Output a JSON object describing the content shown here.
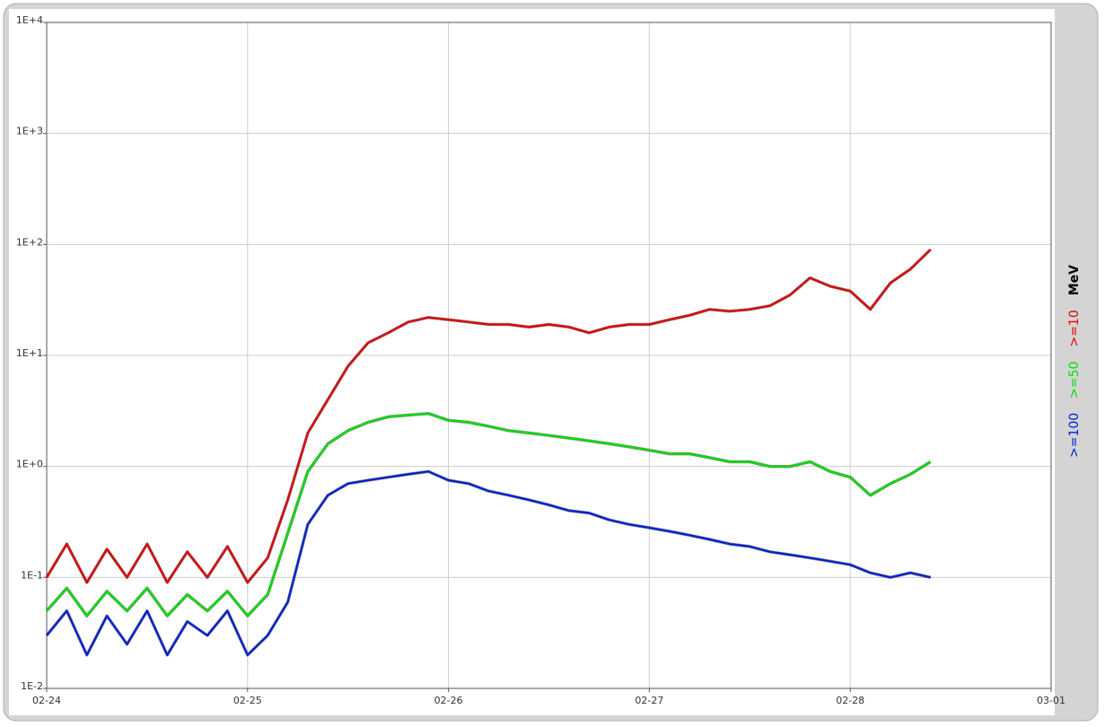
{
  "chart_data": {
    "type": "line",
    "unit_label": "MeV",
    "x": [
      0,
      0.1,
      0.2,
      0.3,
      0.4,
      0.5,
      0.6,
      0.7,
      0.8,
      0.9,
      1.0,
      1.1,
      1.2,
      1.3,
      1.4,
      1.5,
      1.6,
      1.7,
      1.8,
      1.9,
      2.0,
      2.1,
      2.2,
      2.3,
      2.4,
      2.5,
      2.6,
      2.7,
      2.8,
      2.9,
      3.0,
      3.1,
      3.2,
      3.3,
      3.4,
      3.5,
      3.6,
      3.7,
      3.8,
      3.9,
      4.0,
      4.1,
      4.2,
      4.3,
      4.4
    ],
    "series": [
      {
        "name": ">=10",
        "color": "#e00000",
        "values": [
          0.1,
          0.2,
          0.09,
          0.18,
          0.1,
          0.2,
          0.09,
          0.17,
          0.1,
          0.19,
          0.09,
          0.15,
          0.5,
          2,
          4,
          8,
          13,
          16,
          20,
          22,
          21,
          20,
          19,
          19,
          18,
          19,
          18,
          16,
          18,
          19,
          19,
          21,
          23,
          26,
          25,
          26,
          28,
          35,
          50,
          42,
          38,
          26,
          45,
          60,
          90
        ]
      },
      {
        "name": ">=50",
        "color": "#00e000",
        "values": [
          0.05,
          0.08,
          0.045,
          0.075,
          0.05,
          0.08,
          0.045,
          0.07,
          0.05,
          0.075,
          0.045,
          0.07,
          0.25,
          0.9,
          1.6,
          2.1,
          2.5,
          2.8,
          2.9,
          3.0,
          2.6,
          2.5,
          2.3,
          2.1,
          2.0,
          1.9,
          1.8,
          1.7,
          1.6,
          1.5,
          1.4,
          1.3,
          1.3,
          1.2,
          1.1,
          1.1,
          1.0,
          1.0,
          1.1,
          0.9,
          0.8,
          0.55,
          0.7,
          0.85,
          1.1
        ]
      },
      {
        "name": ">=100",
        "color": "#0020d0",
        "values": [
          0.03,
          0.05,
          0.02,
          0.045,
          0.025,
          0.05,
          0.02,
          0.04,
          0.03,
          0.05,
          0.02,
          0.03,
          0.06,
          0.3,
          0.55,
          0.7,
          0.75,
          0.8,
          0.85,
          0.9,
          0.75,
          0.7,
          0.6,
          0.55,
          0.5,
          0.45,
          0.4,
          0.38,
          0.33,
          0.3,
          0.28,
          0.26,
          0.24,
          0.22,
          0.2,
          0.19,
          0.17,
          0.16,
          0.15,
          0.14,
          0.13,
          0.11,
          0.1,
          0.11,
          0.1
        ]
      }
    ],
    "xlim": [
      0,
      5
    ],
    "xticks": [
      {
        "value": 0,
        "label": "02-24"
      },
      {
        "value": 1,
        "label": "02-25"
      },
      {
        "value": 2,
        "label": "02-26"
      },
      {
        "value": 3,
        "label": "02-27"
      },
      {
        "value": 4,
        "label": "02-28"
      },
      {
        "value": 5,
        "label": "03-01"
      }
    ],
    "ylim": [
      0.01,
      10000
    ],
    "yticks": [
      {
        "value": 0.01,
        "label": "1E-2"
      },
      {
        "value": 0.1,
        "label": "1E-1"
      },
      {
        "value": 1,
        "label": "1E+0"
      },
      {
        "value": 10,
        "label": "1E+1"
      },
      {
        "value": 100,
        "label": "1E+2"
      },
      {
        "value": 1000,
        "label": "1E+3"
      },
      {
        "value": 10000,
        "label": "1E+4"
      }
    ],
    "log_y": true,
    "grid": true
  }
}
